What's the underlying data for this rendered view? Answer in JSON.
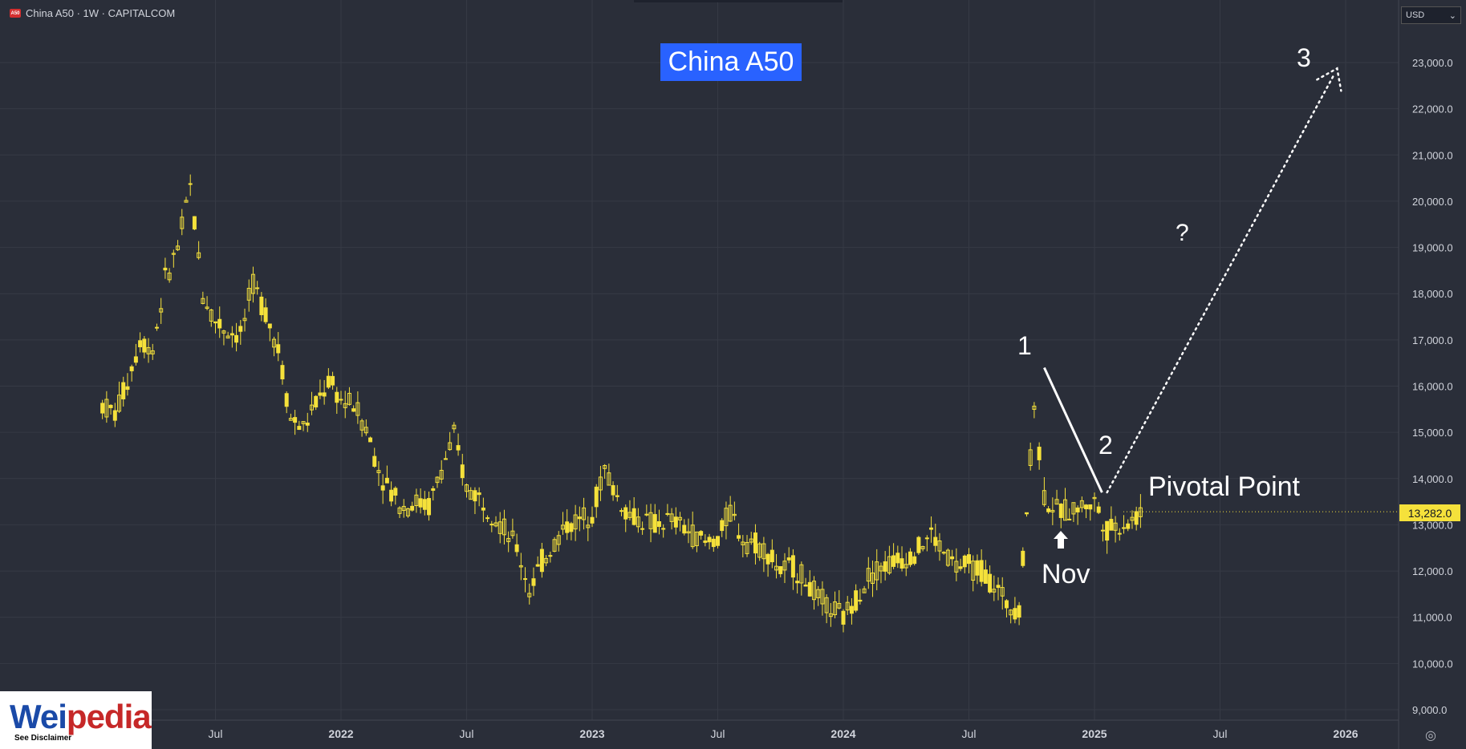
{
  "header": {
    "symbol_line": "China A50 · 1W · CAPITALCOM",
    "logo_text": "A50"
  },
  "currency": {
    "value": "USD",
    "icon": "chevron-down-icon"
  },
  "annotations": {
    "title": "China A50",
    "label_1": "1",
    "label_2": "2",
    "label_3": "3",
    "question": "?",
    "pivotal": "Pivotal Point",
    "nov": "Nov"
  },
  "last_price": "13,282.0",
  "watermark": {
    "part1": "Wei",
    "part2": "pedia",
    "disclaimer": "See Disclaimer"
  },
  "settings_icon": "settings-icon",
  "colors": {
    "background": "#2a2e39",
    "candle": "#f5e13b",
    "title_bg": "#2962ff",
    "text": "#d1d4dc"
  },
  "chart_data": {
    "type": "candlestick",
    "title": "China A50",
    "y_ticks": [
      "23,000.0",
      "22,000.0",
      "21,000.0",
      "20,000.0",
      "19,000.0",
      "18,000.0",
      "17,000.0",
      "16,000.0",
      "15,000.0",
      "14,000.0",
      "13,000.0",
      "12,000.0",
      "11,000.0",
      "10,000.0",
      "9,000.0"
    ],
    "x_ticks": [
      "Jul",
      "2022",
      "Jul",
      "2023",
      "Jul",
      "2024",
      "Jul",
      "2025",
      "Jul",
      "2026"
    ],
    "ylim": [
      8800,
      24200
    ],
    "series_points": [
      [
        2021.05,
        15600
      ],
      [
        2021.1,
        15400
      ],
      [
        2021.15,
        16100
      ],
      [
        2021.2,
        17000
      ],
      [
        2021.25,
        16800
      ],
      [
        2021.3,
        18300
      ],
      [
        2021.35,
        19000
      ],
      [
        2021.4,
        20300
      ],
      [
        2021.45,
        18000
      ],
      [
        2021.5,
        17400
      ],
      [
        2021.55,
        17200
      ],
      [
        2021.6,
        17100
      ],
      [
        2021.65,
        18200
      ],
      [
        2021.7,
        17600
      ],
      [
        2021.75,
        16800
      ],
      [
        2021.8,
        15300
      ],
      [
        2021.85,
        15100
      ],
      [
        2021.9,
        15600
      ],
      [
        2021.95,
        16100
      ],
      [
        2022.0,
        15700
      ],
      [
        2022.05,
        15600
      ],
      [
        2022.1,
        15100
      ],
      [
        2022.15,
        14200
      ],
      [
        2022.2,
        13700
      ],
      [
        2022.25,
        13400
      ],
      [
        2022.3,
        13500
      ],
      [
        2022.35,
        13400
      ],
      [
        2022.4,
        14200
      ],
      [
        2022.45,
        14900
      ],
      [
        2022.5,
        13800
      ],
      [
        2022.55,
        13600
      ],
      [
        2022.6,
        13300
      ],
      [
        2022.65,
        12900
      ],
      [
        2022.7,
        12500
      ],
      [
        2022.75,
        11600
      ],
      [
        2022.8,
        12200
      ],
      [
        2022.85,
        12600
      ],
      [
        2022.9,
        13000
      ],
      [
        2022.95,
        13100
      ],
      [
        2023.0,
        13300
      ],
      [
        2023.05,
        14200
      ],
      [
        2023.1,
        13600
      ],
      [
        2023.15,
        13200
      ],
      [
        2023.2,
        13100
      ],
      [
        2023.25,
        13000
      ],
      [
        2023.3,
        13100
      ],
      [
        2023.35,
        13000
      ],
      [
        2023.4,
        12800
      ],
      [
        2023.45,
        12600
      ],
      [
        2023.5,
        12700
      ],
      [
        2023.55,
        13300
      ],
      [
        2023.6,
        12700
      ],
      [
        2023.65,
        12600
      ],
      [
        2023.7,
        12400
      ],
      [
        2023.75,
        12000
      ],
      [
        2023.8,
        12100
      ],
      [
        2023.85,
        11800
      ],
      [
        2023.9,
        11400
      ],
      [
        2023.95,
        11200
      ],
      [
        2024.0,
        11000
      ],
      [
        2024.05,
        11400
      ],
      [
        2024.1,
        11900
      ],
      [
        2024.15,
        12100
      ],
      [
        2024.2,
        12200
      ],
      [
        2024.25,
        12300
      ],
      [
        2024.3,
        12500
      ],
      [
        2024.35,
        12800
      ],
      [
        2024.4,
        12400
      ],
      [
        2024.45,
        12100
      ],
      [
        2024.5,
        12100
      ],
      [
        2024.55,
        12000
      ],
      [
        2024.6,
        11700
      ],
      [
        2024.65,
        11300
      ],
      [
        2024.7,
        11200
      ],
      [
        2024.73,
        13300
      ],
      [
        2024.76,
        15600
      ],
      [
        2024.8,
        13600
      ],
      [
        2024.85,
        13300
      ],
      [
        2024.9,
        13300
      ],
      [
        2024.95,
        13400
      ],
      [
        2025.0,
        13500
      ],
      [
        2025.05,
        12900
      ],
      [
        2025.1,
        13000
      ],
      [
        2025.15,
        13100
      ],
      [
        2025.2,
        13282
      ]
    ],
    "projection": {
      "wave_line": [
        [
          2024.8,
          16400
        ],
        [
          2025.03,
          13700
        ]
      ],
      "dotted_path": [
        [
          2025.05,
          13700
        ],
        [
          2025.95,
          22700
        ]
      ],
      "labels": [
        "1",
        "2",
        "3",
        "?"
      ]
    }
  }
}
